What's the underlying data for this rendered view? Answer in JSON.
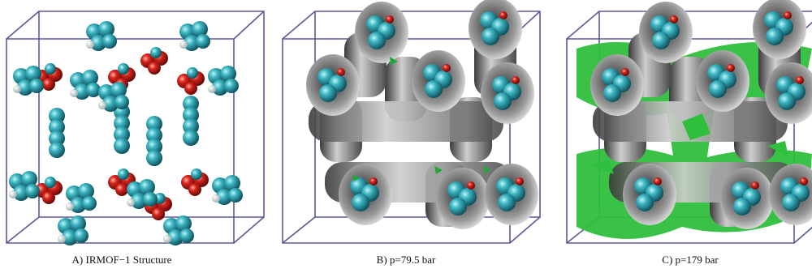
{
  "panels": [
    {
      "caption": "A) IRMOF−1 Structure"
    },
    {
      "caption": "B) p=79.5 bar"
    },
    {
      "caption": "C) p=179 bar"
    }
  ]
}
